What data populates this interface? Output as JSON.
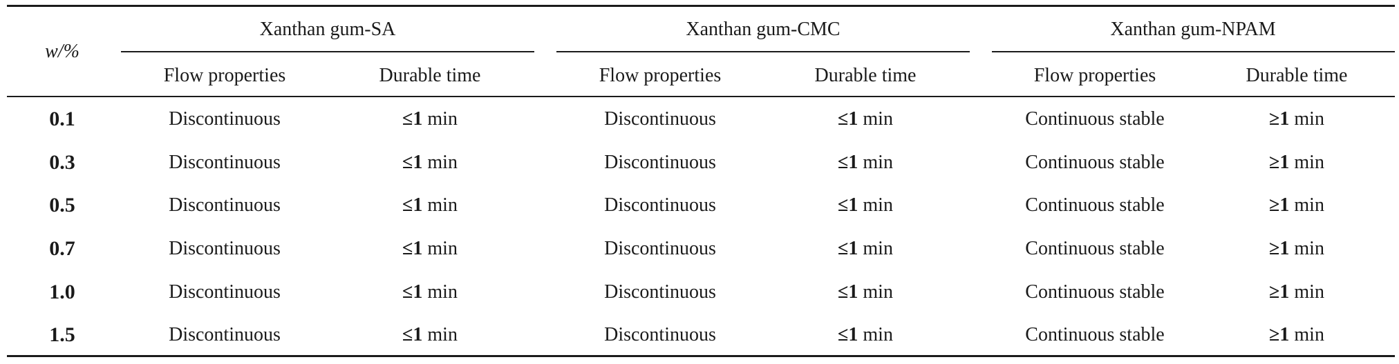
{
  "table": {
    "row_header": "w/%",
    "groups": [
      {
        "name": "Xanthan gum-SA",
        "col_flow": "Flow properties",
        "col_time": "Durable time"
      },
      {
        "name": "Xanthan gum-CMC",
        "col_flow": "Flow properties",
        "col_time": "Durable time"
      },
      {
        "name": "Xanthan gum-NPAM",
        "col_flow": "Flow properties",
        "col_time": "Durable time"
      }
    ],
    "rows": [
      {
        "w": "0.1",
        "cells": [
          [
            "Discontinuous",
            "≤",
            "1",
            "min"
          ],
          [
            "Discontinuous",
            "≤",
            "1",
            "min"
          ],
          [
            "Continuous stable",
            "≥",
            "1",
            "min"
          ]
        ]
      },
      {
        "w": "0.3",
        "cells": [
          [
            "Discontinuous",
            "≤",
            "1",
            "min"
          ],
          [
            "Discontinuous",
            "≤",
            "1",
            "min"
          ],
          [
            "Continuous stable",
            "≥",
            "1",
            "min"
          ]
        ]
      },
      {
        "w": "0.5",
        "cells": [
          [
            "Discontinuous",
            "≤",
            "1",
            "min"
          ],
          [
            "Discontinuous",
            "≤",
            "1",
            "min"
          ],
          [
            "Continuous stable",
            "≥",
            "1",
            "min"
          ]
        ]
      },
      {
        "w": "0.7",
        "cells": [
          [
            "Discontinuous",
            "≤",
            "1",
            "min"
          ],
          [
            "Discontinuous",
            "≤",
            "1",
            "min"
          ],
          [
            "Continuous stable",
            "≥",
            "1",
            "min"
          ]
        ]
      },
      {
        "w": "1.0",
        "cells": [
          [
            "Discontinuous",
            "≤",
            "1",
            "min"
          ],
          [
            "Discontinuous",
            "≤",
            "1",
            "min"
          ],
          [
            "Continuous stable",
            "≥",
            "1",
            "min"
          ]
        ]
      },
      {
        "w": "1.5",
        "cells": [
          [
            "Discontinuous",
            "≤",
            "1",
            "min"
          ],
          [
            "Discontinuous",
            "≤",
            "1",
            "min"
          ],
          [
            "Continuous stable",
            "≥",
            "1",
            "min"
          ]
        ]
      }
    ]
  }
}
